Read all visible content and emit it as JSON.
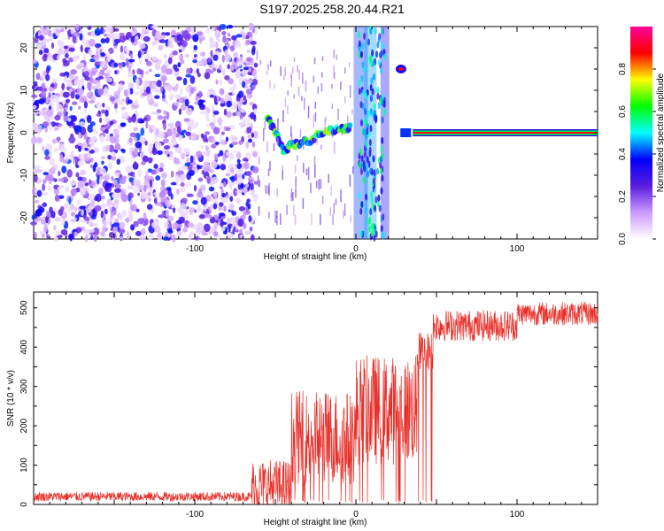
{
  "title": "S197.2025.258.20.44.R21",
  "chart_data": [
    {
      "type": "heatmap",
      "name": "spectrogram",
      "xlabel": "Height of straight line (km)",
      "ylabel": "Frequency (Hz)",
      "xlim": [
        -200,
        150
      ],
      "ylim": [
        -25,
        25
      ],
      "xticks": [
        -100,
        0,
        100
      ],
      "yticks": [
        -20,
        -10,
        0,
        10,
        20
      ],
      "colorbar": {
        "label": "Normalized spectral amplitude",
        "range": [
          0,
          1
        ],
        "ticks": [
          "0.0",
          "0.2",
          "0.4",
          "0.6",
          "0.8"
        ],
        "colors": [
          "#ffffff",
          "#cc99ff",
          "#5a1bdd",
          "#0000ff",
          "#00ffff",
          "#00ff00",
          "#ffff00",
          "#ff0000",
          "#ff0099"
        ]
      },
      "features": [
        {
          "name": "noise-region",
          "x_range": [
            -200,
            -62
          ],
          "f_range": [
            -25,
            25
          ],
          "amplitude": 0.25
        },
        {
          "name": "sweep-track",
          "points": [
            [
              -55,
              4
            ],
            [
              -50,
              0
            ],
            [
              -45,
              -4
            ],
            [
              -40,
              -3
            ],
            [
              -30,
              -2
            ],
            [
              -20,
              0
            ],
            [
              -10,
              1
            ],
            [
              -3,
              1
            ]
          ],
          "amplitude": 0.55
        },
        {
          "name": "spike-at-zero",
          "x": 0,
          "f_range": [
            -25,
            25
          ],
          "amplitude": 0.3
        },
        {
          "name": "burst-high",
          "x": 28,
          "f": 15,
          "amplitude": 0.9
        },
        {
          "name": "carrier-line",
          "x_range": [
            32,
            150
          ],
          "f": 0,
          "amplitude": 0.9
        }
      ]
    },
    {
      "type": "line",
      "name": "snr",
      "xlabel": "Height of straight line (km)",
      "ylabel": "SNR (10 * v/v)",
      "xlim": [
        -200,
        150
      ],
      "ylim": [
        0,
        540
      ],
      "xticks": [
        -100,
        0,
        100
      ],
      "yticks": [
        0,
        100,
        200,
        300,
        400,
        500
      ],
      "color": "#e8302a",
      "segments": [
        {
          "x_range": [
            -200,
            -65
          ],
          "mean": 20,
          "noise": 12
        },
        {
          "x_range": [
            -65,
            -40
          ],
          "mean": 45,
          "noise": 70
        },
        {
          "x_range": [
            -40,
            0
          ],
          "mean": 170,
          "noise": 120
        },
        {
          "x_range": [
            0,
            38
          ],
          "mean": 240,
          "noise": 140
        },
        {
          "x_range": [
            38,
            48
          ],
          "mean": 390,
          "noise": 50
        },
        {
          "x_range": [
            48,
            100
          ],
          "mean": 455,
          "noise": 40
        },
        {
          "x_range": [
            100,
            150
          ],
          "mean": 485,
          "noise": 30
        }
      ],
      "dropouts_x_range": [
        -40,
        48
      ]
    }
  ]
}
